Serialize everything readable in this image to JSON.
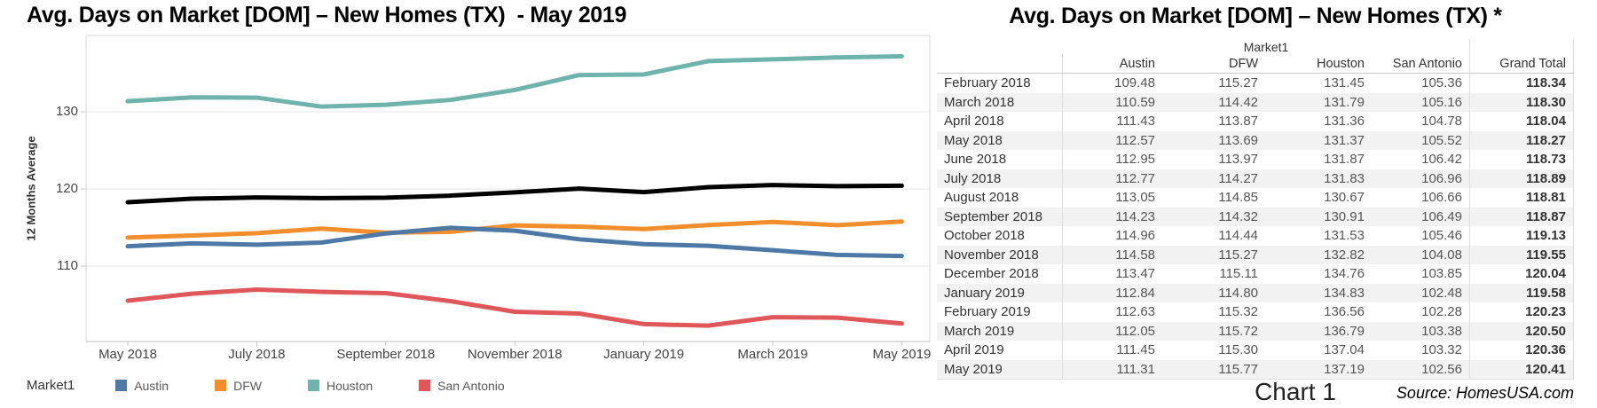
{
  "left_chart": {
    "title": "Avg. Days on Market [DOM] – New Homes (TX)  - May 2019",
    "y_axis_title": "12 Months Average",
    "y_ticks": [
      130,
      120,
      110
    ],
    "x_tick_labels": [
      "May 2018",
      "July 2018",
      "September 2018",
      "November 2018",
      "January 2019",
      "March 2019",
      "May 2019"
    ],
    "legend": {
      "title": "Market1",
      "entries": [
        {
          "label": "Austin",
          "color": "#4e79a7"
        },
        {
          "label": "DFW",
          "color": "#f28e2b"
        },
        {
          "label": "Houston",
          "color": "#6fb3ad"
        },
        {
          "label": "San Antonio",
          "color": "#e05759"
        }
      ]
    }
  },
  "chart_data": {
    "type": "line",
    "title": "Avg. Days on Market [DOM] – New Homes (TX)  - May 2019",
    "xlabel": "",
    "ylabel": "12 Months Average",
    "ylim": [
      100,
      140
    ],
    "grid": "horizontal",
    "legend_position": "bottom",
    "x": [
      "May 2018",
      "June 2018",
      "July 2018",
      "August 2018",
      "September 2018",
      "October 2018",
      "November 2018",
      "December 2018",
      "January 2019",
      "February 2019",
      "March 2019",
      "April 2019",
      "May 2019"
    ],
    "series": [
      {
        "name": "Austin",
        "color": "#4e79a7",
        "in_legend": true,
        "values": [
          112.57,
          112.95,
          112.77,
          113.05,
          114.23,
          114.96,
          114.58,
          113.47,
          112.84,
          112.63,
          112.05,
          111.45,
          111.31
        ]
      },
      {
        "name": "DFW",
        "color": "#f28e2b",
        "in_legend": true,
        "values": [
          113.69,
          113.97,
          114.27,
          114.85,
          114.32,
          114.44,
          115.27,
          115.11,
          114.8,
          115.32,
          115.72,
          115.3,
          115.77
        ]
      },
      {
        "name": "Houston",
        "color": "#6fb3ad",
        "in_legend": true,
        "values": [
          131.37,
          131.87,
          131.83,
          130.67,
          130.91,
          131.53,
          132.82,
          134.76,
          134.83,
          136.56,
          136.79,
          137.04,
          137.19
        ]
      },
      {
        "name": "San Antonio",
        "color": "#e05759",
        "in_legend": true,
        "values": [
          105.52,
          106.42,
          106.96,
          106.66,
          106.49,
          105.46,
          104.08,
          103.85,
          102.48,
          102.28,
          103.38,
          103.32,
          102.56
        ]
      },
      {
        "name": "Grand Total",
        "color": "#000000",
        "in_legend": false,
        "values": [
          118.27,
          118.73,
          118.89,
          118.81,
          118.87,
          119.13,
          119.55,
          120.04,
          119.58,
          120.23,
          120.5,
          120.36,
          120.41
        ]
      }
    ]
  },
  "table": {
    "title": "Avg. Days on Market [DOM] – New Homes (TX) *",
    "group_header": "Market1",
    "columns": [
      "",
      "Austin",
      "DFW",
      "Houston",
      "San Antonio",
      "Grand Total"
    ],
    "rows": [
      {
        "month": "February 2018",
        "austin": "109.48",
        "dfw": "115.27",
        "houston": "131.45",
        "san_antonio": "105.36",
        "grand_total": "118.34"
      },
      {
        "month": "March 2018",
        "austin": "110.59",
        "dfw": "114.42",
        "houston": "131.79",
        "san_antonio": "105.16",
        "grand_total": "118.30"
      },
      {
        "month": "April 2018",
        "austin": "111.43",
        "dfw": "113.87",
        "houston": "131.36",
        "san_antonio": "104.78",
        "grand_total": "118.04"
      },
      {
        "month": "May 2018",
        "austin": "112.57",
        "dfw": "113.69",
        "houston": "131.37",
        "san_antonio": "105.52",
        "grand_total": "118.27"
      },
      {
        "month": "June 2018",
        "austin": "112.95",
        "dfw": "113.97",
        "houston": "131.87",
        "san_antonio": "106.42",
        "grand_total": "118.73"
      },
      {
        "month": "July 2018",
        "austin": "112.77",
        "dfw": "114.27",
        "houston": "131.83",
        "san_antonio": "106.96",
        "grand_total": "118.89"
      },
      {
        "month": "August 2018",
        "austin": "113.05",
        "dfw": "114.85",
        "houston": "130.67",
        "san_antonio": "106.66",
        "grand_total": "118.81"
      },
      {
        "month": "September 2018",
        "austin": "114.23",
        "dfw": "114.32",
        "houston": "130.91",
        "san_antonio": "106.49",
        "grand_total": "118.87"
      },
      {
        "month": "October 2018",
        "austin": "114.96",
        "dfw": "114.44",
        "houston": "131.53",
        "san_antonio": "105.46",
        "grand_total": "119.13"
      },
      {
        "month": "November 2018",
        "austin": "114.58",
        "dfw": "115.27",
        "houston": "132.82",
        "san_antonio": "104.08",
        "grand_total": "119.55"
      },
      {
        "month": "December 2018",
        "austin": "113.47",
        "dfw": "115.11",
        "houston": "134.76",
        "san_antonio": "103.85",
        "grand_total": "120.04"
      },
      {
        "month": "January 2019",
        "austin": "112.84",
        "dfw": "114.80",
        "houston": "134.83",
        "san_antonio": "102.48",
        "grand_total": "119.58"
      },
      {
        "month": "February 2019",
        "austin": "112.63",
        "dfw": "115.32",
        "houston": "136.56",
        "san_antonio": "102.28",
        "grand_total": "120.23"
      },
      {
        "month": "March 2019",
        "austin": "112.05",
        "dfw": "115.72",
        "houston": "136.79",
        "san_antonio": "103.38",
        "grand_total": "120.50"
      },
      {
        "month": "April 2019",
        "austin": "111.45",
        "dfw": "115.30",
        "houston": "137.04",
        "san_antonio": "103.32",
        "grand_total": "120.36"
      },
      {
        "month": "May 2019",
        "austin": "111.31",
        "dfw": "115.77",
        "houston": "137.19",
        "san_antonio": "102.56",
        "grand_total": "120.41"
      }
    ]
  },
  "footer": {
    "chart_label": "Chart 1",
    "source": "Source: HomesUSA.com"
  }
}
